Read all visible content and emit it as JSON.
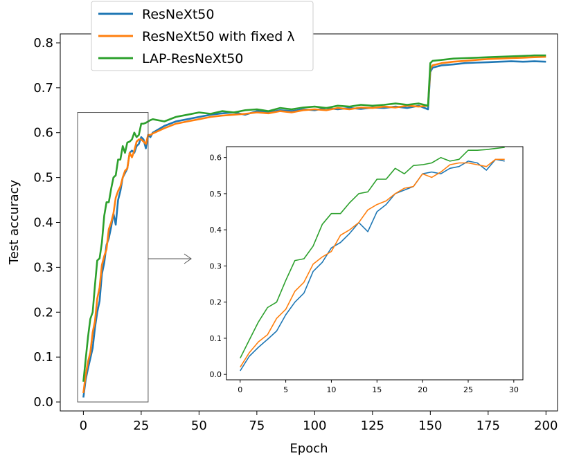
{
  "chart_data": {
    "type": "line",
    "xlabel": "Epoch",
    "ylabel": "Test accuracy",
    "xlim": [
      -10,
      205
    ],
    "ylim": [
      -0.02,
      0.82
    ],
    "xticks": [
      "0",
      "25",
      "50",
      "75",
      "100",
      "125",
      "150",
      "175",
      "200"
    ],
    "yticks": [
      "0.0",
      "0.1",
      "0.2",
      "0.3",
      "0.4",
      "0.5",
      "0.6",
      "0.7",
      "0.8"
    ],
    "legend_position": "top-left",
    "grid": false,
    "series": [
      {
        "name": "ResNeXt50",
        "color": "#1f77b4",
        "x": [
          0,
          1,
          2,
          3,
          4,
          5,
          6,
          7,
          8,
          9,
          10,
          11,
          12,
          13,
          14,
          15,
          16,
          17,
          18,
          19,
          20,
          21,
          22,
          23,
          24,
          25,
          26,
          27,
          28,
          29,
          30,
          35,
          40,
          45,
          50,
          55,
          60,
          65,
          70,
          75,
          80,
          85,
          90,
          95,
          100,
          105,
          110,
          115,
          120,
          125,
          130,
          135,
          140,
          145,
          149,
          150,
          151,
          155,
          160,
          165,
          170,
          175,
          180,
          185,
          190,
          195,
          200
        ],
        "y": [
          0.01,
          0.05,
          0.075,
          0.097,
          0.12,
          0.165,
          0.2,
          0.225,
          0.285,
          0.31,
          0.35,
          0.365,
          0.39,
          0.42,
          0.395,
          0.45,
          0.47,
          0.5,
          0.51,
          0.52,
          0.555,
          0.56,
          0.555,
          0.57,
          0.575,
          0.59,
          0.585,
          0.565,
          0.595,
          0.59,
          0.6,
          0.615,
          0.625,
          0.63,
          0.635,
          0.64,
          0.643,
          0.645,
          0.64,
          0.648,
          0.645,
          0.65,
          0.648,
          0.652,
          0.65,
          0.655,
          0.652,
          0.655,
          0.653,
          0.656,
          0.655,
          0.658,
          0.655,
          0.66,
          0.652,
          0.735,
          0.745,
          0.75,
          0.752,
          0.755,
          0.756,
          0.757,
          0.758,
          0.759,
          0.758,
          0.759,
          0.758
        ]
      },
      {
        "name": "ResNeXt50 with fixed λ",
        "color": "#ff7f0e",
        "x": [
          0,
          1,
          2,
          3,
          4,
          5,
          6,
          7,
          8,
          9,
          10,
          11,
          12,
          13,
          14,
          15,
          16,
          17,
          18,
          19,
          20,
          21,
          22,
          23,
          24,
          25,
          26,
          27,
          28,
          29,
          30,
          35,
          40,
          45,
          50,
          55,
          60,
          65,
          70,
          75,
          80,
          85,
          90,
          95,
          100,
          105,
          110,
          115,
          120,
          125,
          130,
          135,
          140,
          145,
          149,
          150,
          151,
          155,
          160,
          165,
          170,
          175,
          180,
          185,
          190,
          195,
          200
        ],
        "y": [
          0.02,
          0.06,
          0.09,
          0.11,
          0.155,
          0.18,
          0.23,
          0.255,
          0.305,
          0.325,
          0.34,
          0.385,
          0.4,
          0.42,
          0.455,
          0.47,
          0.48,
          0.5,
          0.515,
          0.52,
          0.555,
          0.545,
          0.56,
          0.58,
          0.585,
          0.585,
          0.58,
          0.575,
          0.595,
          0.595,
          0.598,
          0.61,
          0.62,
          0.625,
          0.63,
          0.635,
          0.638,
          0.64,
          0.642,
          0.645,
          0.643,
          0.648,
          0.645,
          0.65,
          0.652,
          0.65,
          0.655,
          0.652,
          0.656,
          0.655,
          0.658,
          0.656,
          0.66,
          0.658,
          0.66,
          0.742,
          0.75,
          0.755,
          0.758,
          0.76,
          0.762,
          0.764,
          0.765,
          0.766,
          0.767,
          0.768,
          0.769
        ]
      },
      {
        "name": "LAP-ResNeXt50",
        "color": "#2ca02c",
        "x": [
          0,
          1,
          2,
          3,
          4,
          5,
          6,
          7,
          8,
          9,
          10,
          11,
          12,
          13,
          14,
          15,
          16,
          17,
          18,
          19,
          20,
          21,
          22,
          23,
          24,
          25,
          26,
          27,
          28,
          29,
          30,
          35,
          40,
          45,
          50,
          55,
          60,
          65,
          70,
          75,
          80,
          85,
          90,
          95,
          100,
          105,
          110,
          115,
          120,
          125,
          130,
          135,
          140,
          145,
          149,
          150,
          151,
          155,
          160,
          165,
          170,
          175,
          180,
          185,
          190,
          195,
          200
        ],
        "y": [
          0.045,
          0.095,
          0.145,
          0.185,
          0.2,
          0.26,
          0.315,
          0.32,
          0.355,
          0.415,
          0.445,
          0.445,
          0.475,
          0.5,
          0.505,
          0.54,
          0.54,
          0.57,
          0.555,
          0.578,
          0.58,
          0.585,
          0.6,
          0.59,
          0.595,
          0.62,
          0.62,
          0.622,
          0.625,
          0.628,
          0.63,
          0.625,
          0.635,
          0.64,
          0.645,
          0.642,
          0.648,
          0.645,
          0.65,
          0.652,
          0.648,
          0.655,
          0.652,
          0.656,
          0.658,
          0.655,
          0.66,
          0.658,
          0.662,
          0.66,
          0.662,
          0.665,
          0.662,
          0.665,
          0.66,
          0.755,
          0.76,
          0.762,
          0.765,
          0.766,
          0.767,
          0.768,
          0.769,
          0.77,
          0.771,
          0.772,
          0.772
        ]
      }
    ],
    "inset": {
      "xlim": [
        -1.5,
        31
      ],
      "ylim": [
        -0.015,
        0.63
      ],
      "xticks": [
        "0",
        "5",
        "10",
        "15",
        "20",
        "25",
        "30"
      ],
      "yticks": [
        "0.0",
        "0.1",
        "0.2",
        "0.3",
        "0.4",
        "0.5",
        "0.6"
      ],
      "source_xrange": [
        0,
        29
      ],
      "zoom_box": {
        "x": [
          -2.5,
          28
        ],
        "y": [
          0.0,
          0.645
        ]
      }
    }
  }
}
